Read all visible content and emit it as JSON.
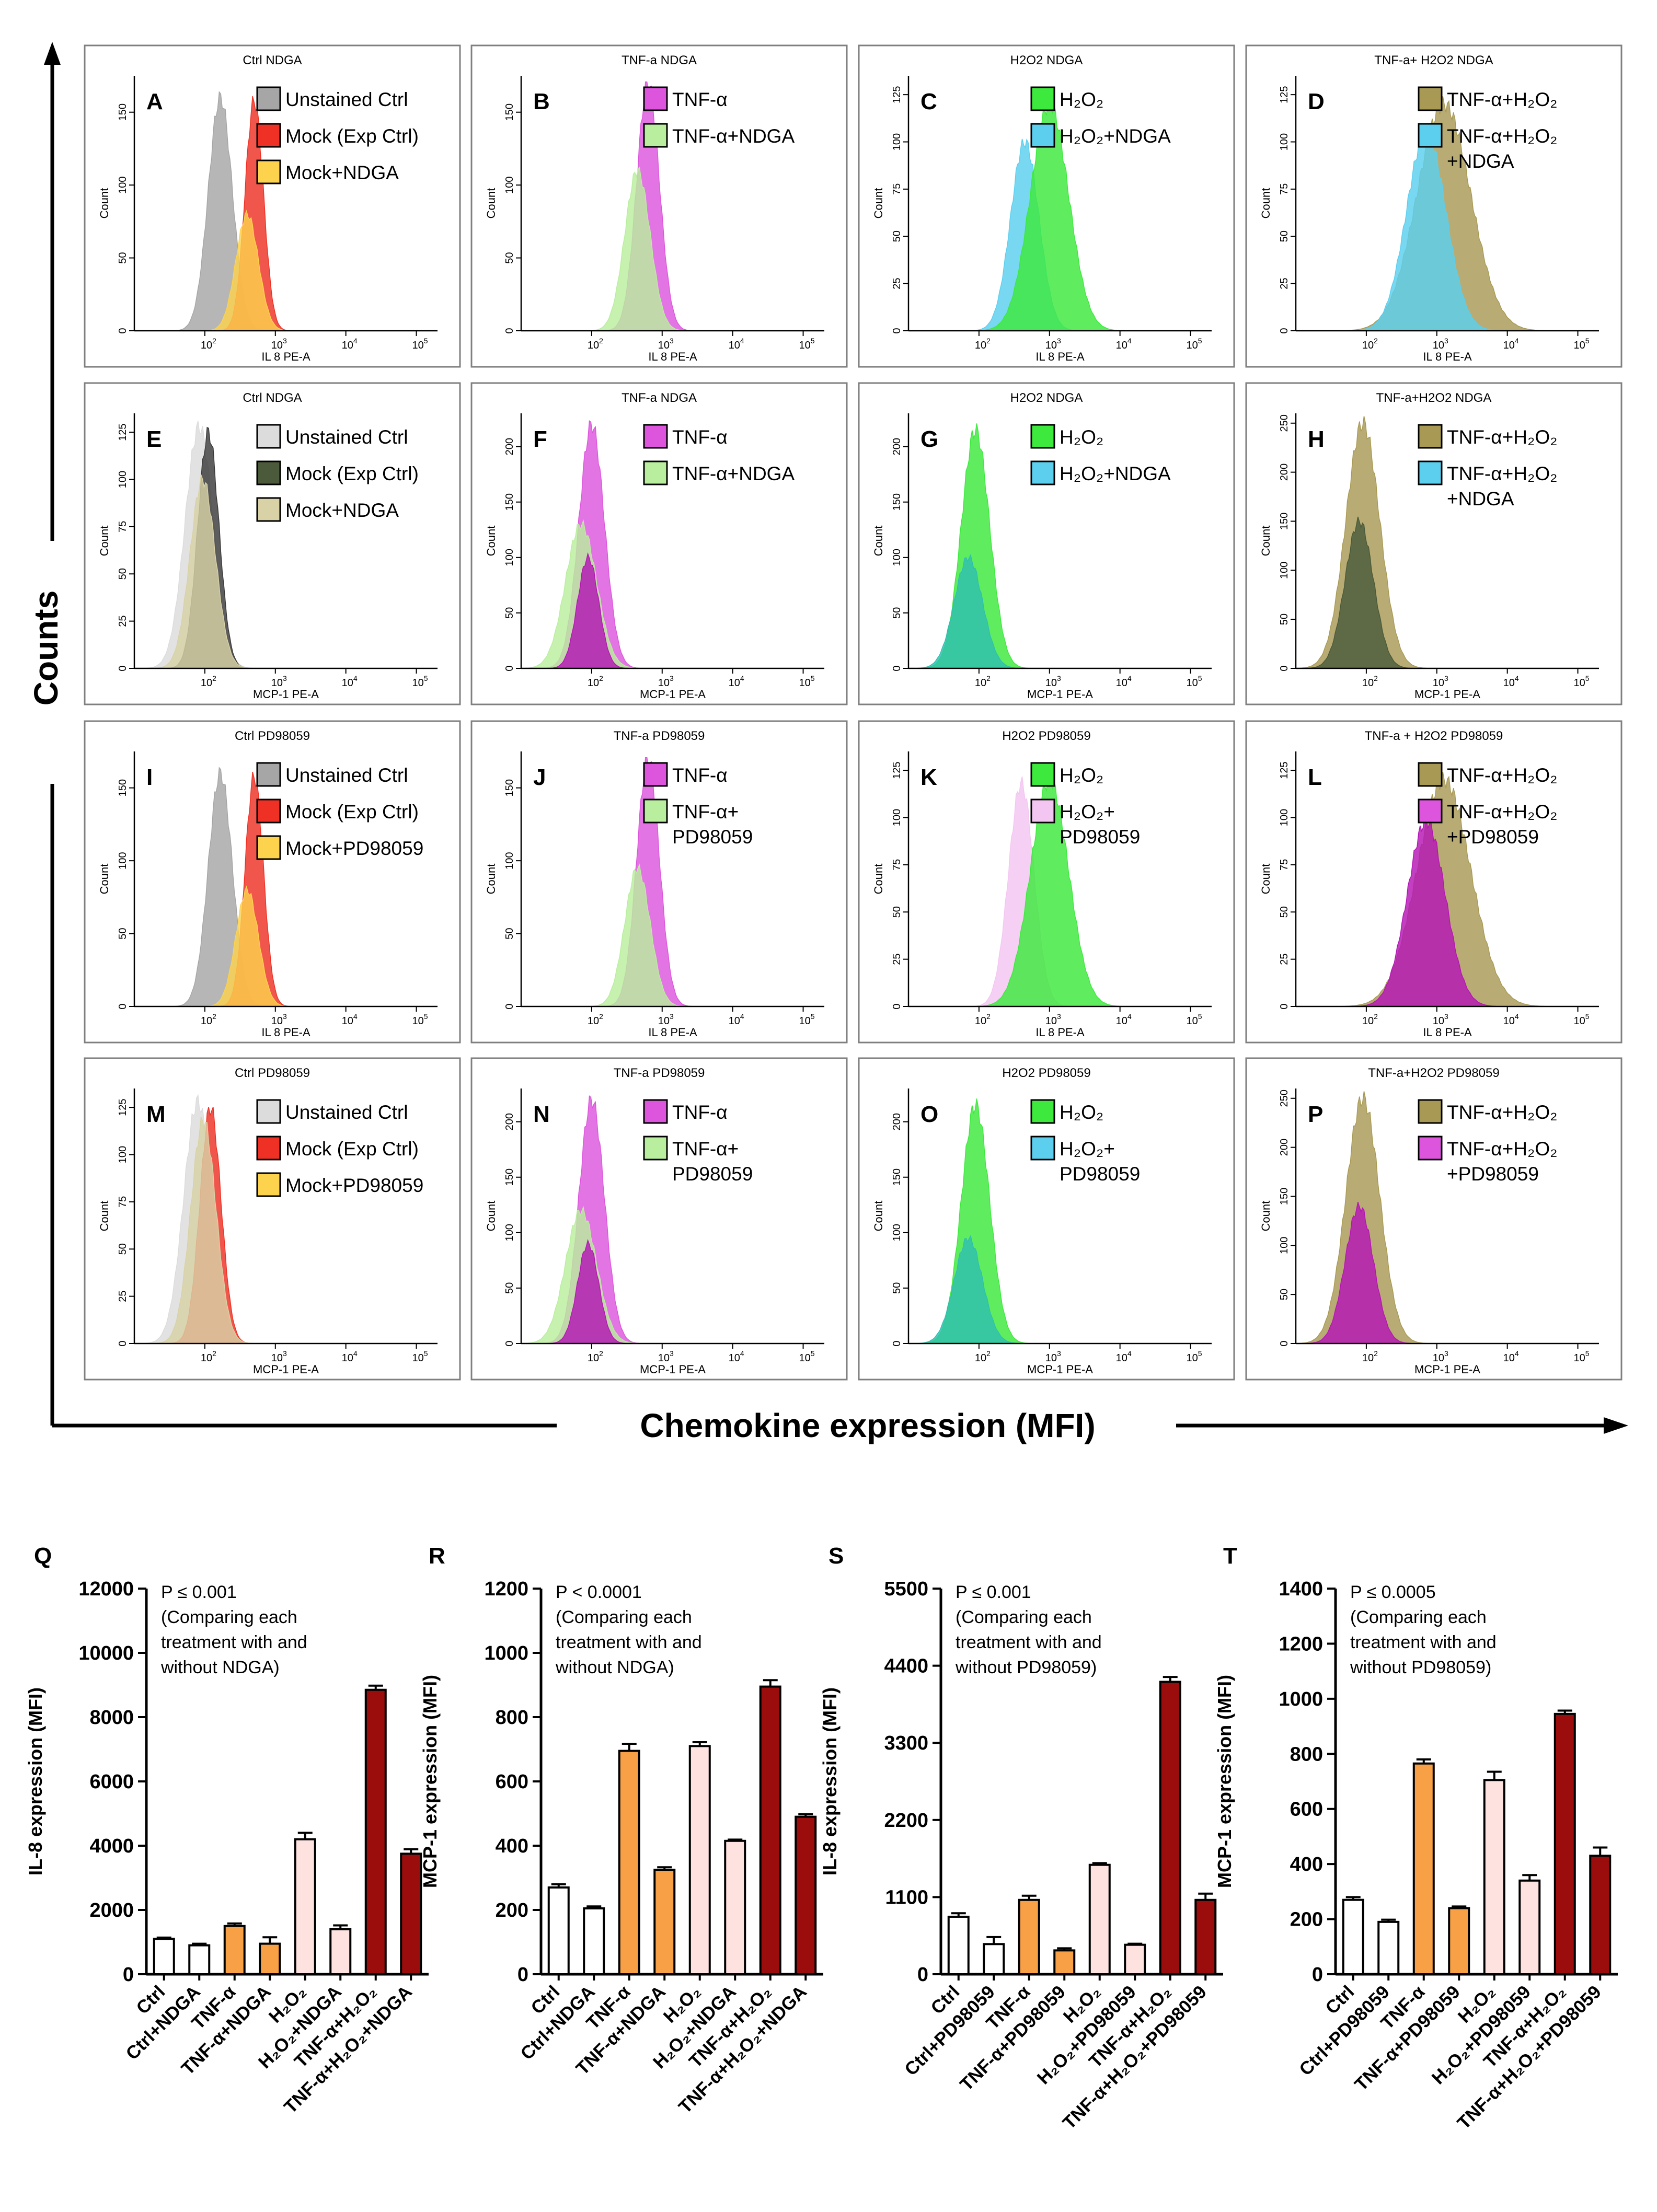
{
  "figure": {
    "y_axis_title": "Counts",
    "x_axis_title": "Chemokine expression (MFI)"
  },
  "colors": {
    "white": "#ffffff",
    "orange": "#f7a046",
    "pink": "#fde2e0",
    "darkred": "#9b0d0d",
    "gray": "#a6a6a6",
    "red": "#ee3124",
    "yellow": "#fdd24d",
    "magenta": "#dd55dd",
    "lightgreen": "#b9ee9e",
    "green": "#3ce93c",
    "skyblue": "#5ccfee",
    "olive": "#a89a55",
    "lilac": "#f3c6f1",
    "purple": "#b515b5",
    "darkgreen": "#4b5a3a",
    "tan": "#d8d2a6",
    "lightgray": "#dcdcdc",
    "darkgray": "#3a3a3a",
    "teal": "#2fbfb0"
  },
  "chart_data": [
    {
      "id": "A",
      "type": "histogram",
      "title": "Ctrl NDGA",
      "xlabel": "IL 8 PE-A",
      "ylabel": "Count",
      "yticks": [
        "0",
        "50",
        "100",
        "150"
      ],
      "ymax": 175,
      "legend": [
        {
          "label": "Unstained Ctrl",
          "color": "gray"
        },
        {
          "label": "Mock (Exp Ctrl)",
          "color": "red"
        },
        {
          "label": "Mock+NDGA",
          "color": "yellow"
        }
      ],
      "series": [
        {
          "color": "gray",
          "center": 2.22,
          "width": 0.17,
          "peak": 160
        },
        {
          "color": "red",
          "center": 2.7,
          "width": 0.13,
          "peak": 158
        },
        {
          "color": "yellow",
          "center": 2.6,
          "width": 0.16,
          "peak": 80
        }
      ]
    },
    {
      "id": "B",
      "type": "histogram",
      "title": "TNF-a NDGA",
      "xlabel": "IL 8 PE-A",
      "ylabel": "Count",
      "yticks": [
        "0",
        "50",
        "100",
        "150"
      ],
      "ymax": 175,
      "legend": [
        {
          "label": "TNF-α",
          "color": "magenta"
        },
        {
          "label": "TNF-α+NDGA",
          "color": "lightgreen"
        }
      ],
      "series": [
        {
          "color": "magenta",
          "center": 2.8,
          "width": 0.16,
          "peak": 170
        },
        {
          "color": "lightgreen",
          "center": 2.65,
          "width": 0.18,
          "peak": 110
        }
      ]
    },
    {
      "id": "C",
      "type": "histogram",
      "title": "H2O2 NDGA",
      "xlabel": "IL 8 PE-A",
      "ylabel": "Count",
      "yticks": [
        "0",
        "25",
        "50",
        "75",
        "100",
        "125"
      ],
      "ymax": 135,
      "legend": [
        {
          "label": "H₂O₂",
          "color": "green"
        },
        {
          "label": "H₂O₂+NDGA",
          "color": "skyblue"
        }
      ],
      "series": [
        {
          "color": "skyblue",
          "center": 2.65,
          "width": 0.2,
          "peak": 100
        },
        {
          "color": "green",
          "center": 3.0,
          "width": 0.27,
          "peak": 120
        }
      ]
    },
    {
      "id": "D",
      "type": "histogram",
      "title": "TNF-a+ H2O2 NDGA",
      "xlabel": "IL 8 PE-A",
      "ylabel": "Count",
      "yticks": [
        "0",
        "25",
        "50",
        "75",
        "100",
        "125"
      ],
      "ymax": 135,
      "legend": [
        {
          "label": "TNF-α+H₂O₂",
          "color": "olive"
        },
        {
          "label": "TNF-α+H₂O₂",
          "color": "skyblue",
          "extra": "+NDGA"
        }
      ],
      "series": [
        {
          "color": "olive",
          "center": 3.1,
          "width": 0.38,
          "peak": 120
        },
        {
          "color": "skyblue",
          "center": 2.85,
          "width": 0.28,
          "peak": 105
        }
      ]
    },
    {
      "id": "E",
      "type": "histogram",
      "title": "Ctrl NDGA",
      "xlabel": "MCP-1 PE-A",
      "ylabel": "Count",
      "yticks": [
        "0",
        "25",
        "50",
        "75",
        "100",
        "125"
      ],
      "ymax": 135,
      "legend": [
        {
          "label": "Unstained Ctrl",
          "color": "lightgray"
        },
        {
          "label": "Mock (Exp Ctrl)",
          "color": "darkgreen"
        },
        {
          "label": "Mock+NDGA",
          "color": "tan"
        }
      ],
      "series": [
        {
          "color": "lightgray",
          "center": 1.92,
          "width": 0.2,
          "peak": 128
        },
        {
          "color": "darkgray",
          "center": 2.05,
          "width": 0.15,
          "peak": 125
        },
        {
          "color": "tan",
          "center": 1.97,
          "width": 0.18,
          "peak": 100
        }
      ]
    },
    {
      "id": "F",
      "type": "histogram",
      "title": "TNF-a NDGA",
      "xlabel": "MCP-1 PE-A",
      "ylabel": "Count",
      "yticks": [
        "0",
        "50",
        "100",
        "150",
        "200"
      ],
      "ymax": 230,
      "legend": [
        {
          "label": "TNF-α",
          "color": "magenta"
        },
        {
          "label": "TNF-α+NDGA",
          "color": "lightgreen"
        }
      ],
      "series": [
        {
          "color": "magenta",
          "center": 2.0,
          "width": 0.18,
          "peak": 220
        },
        {
          "color": "lightgreen",
          "center": 1.85,
          "width": 0.22,
          "peak": 130
        },
        {
          "color": "purple",
          "center": 1.95,
          "width": 0.15,
          "peak": 100
        }
      ]
    },
    {
      "id": "G",
      "type": "histogram",
      "title": "H2O2 NDGA",
      "xlabel": "MCP-1 PE-A",
      "ylabel": "Count",
      "yticks": [
        "0",
        "50",
        "100",
        "150",
        "200"
      ],
      "ymax": 230,
      "legend": [
        {
          "label": "H₂O₂",
          "color": "green"
        },
        {
          "label": "H₂O₂+NDGA",
          "color": "skyblue"
        }
      ],
      "series": [
        {
          "color": "green",
          "center": 1.95,
          "width": 0.2,
          "peak": 215
        },
        {
          "color": "teal",
          "center": 1.85,
          "width": 0.2,
          "peak": 100
        }
      ]
    },
    {
      "id": "H",
      "type": "histogram",
      "title": "TNF-a+H2O2 NDGA",
      "xlabel": "MCP-1 PE-A",
      "ylabel": "Count",
      "yticks": [
        "0",
        "50",
        "100",
        "150",
        "200",
        "250"
      ],
      "ymax": 260,
      "legend": [
        {
          "label": "TNF-α+H₂O₂",
          "color": "olive"
        },
        {
          "label": "TNF-α+H₂O₂",
          "color": "skyblue",
          "extra": "+NDGA"
        }
      ],
      "series": [
        {
          "color": "olive",
          "center": 1.95,
          "width": 0.24,
          "peak": 250
        },
        {
          "color": "darkgreen",
          "center": 1.9,
          "width": 0.2,
          "peak": 150
        }
      ]
    },
    {
      "id": "I",
      "type": "histogram",
      "title": "Ctrl PD98059",
      "xlabel": "IL 8 PE-A",
      "ylabel": "Count",
      "yticks": [
        "0",
        "50",
        "100",
        "150"
      ],
      "ymax": 175,
      "legend": [
        {
          "label": "Unstained Ctrl",
          "color": "gray"
        },
        {
          "label": "Mock (Exp Ctrl)",
          "color": "red"
        },
        {
          "label": "Mock+PD98059",
          "color": "yellow"
        }
      ],
      "series": [
        {
          "color": "gray",
          "center": 2.22,
          "width": 0.17,
          "peak": 160
        },
        {
          "color": "red",
          "center": 2.7,
          "width": 0.13,
          "peak": 158
        },
        {
          "color": "yellow",
          "center": 2.6,
          "width": 0.16,
          "peak": 80
        }
      ]
    },
    {
      "id": "J",
      "type": "histogram",
      "title": "TNF-a PD98059",
      "xlabel": "IL 8 PE-A",
      "ylabel": "Count",
      "yticks": [
        "0",
        "50",
        "100",
        "150"
      ],
      "ymax": 175,
      "legend": [
        {
          "label": "TNF-α",
          "color": "magenta"
        },
        {
          "label": "TNF-α+",
          "color": "lightgreen",
          "extra": "PD98059"
        }
      ],
      "series": [
        {
          "color": "magenta",
          "center": 2.8,
          "width": 0.16,
          "peak": 170
        },
        {
          "color": "lightgreen",
          "center": 2.65,
          "width": 0.18,
          "peak": 95
        }
      ]
    },
    {
      "id": "K",
      "type": "histogram",
      "title": "H2O2 PD98059",
      "xlabel": "IL 8 PE-A",
      "ylabel": "Count",
      "yticks": [
        "0",
        "25",
        "50",
        "75",
        "100",
        "125"
      ],
      "ymax": 135,
      "legend": [
        {
          "label": "H₂O₂",
          "color": "green"
        },
        {
          "label": "H₂O₂+",
          "color": "lilac",
          "extra": "PD98059"
        }
      ],
      "series": [
        {
          "color": "lilac",
          "center": 2.6,
          "width": 0.18,
          "peak": 118
        },
        {
          "color": "green",
          "center": 3.0,
          "width": 0.27,
          "peak": 120
        }
      ]
    },
    {
      "id": "L",
      "type": "histogram",
      "title": "TNF-a + H2O2 PD98059",
      "xlabel": "IL 8 PE-A",
      "ylabel": "Count",
      "yticks": [
        "0",
        "25",
        "50",
        "75",
        "100",
        "125"
      ],
      "ymax": 135,
      "legend": [
        {
          "label": "TNF-α+H₂O₂",
          "color": "olive"
        },
        {
          "label": "TNF-α+H₂O₂",
          "color": "magenta",
          "extra": "+PD98059"
        }
      ],
      "series": [
        {
          "color": "olive",
          "center": 3.1,
          "width": 0.38,
          "peak": 120
        },
        {
          "color": "purple",
          "center": 2.85,
          "width": 0.27,
          "peak": 98
        }
      ]
    },
    {
      "id": "M",
      "type": "histogram",
      "title": "Ctrl PD98059",
      "xlabel": "MCP-1 PE-A",
      "ylabel": "Count",
      "yticks": [
        "0",
        "25",
        "50",
        "75",
        "100",
        "125"
      ],
      "ymax": 135,
      "legend": [
        {
          "label": "Unstained Ctrl",
          "color": "lightgray"
        },
        {
          "label": "Mock (Exp Ctrl)",
          "color": "red"
        },
        {
          "label": "Mock+PD98059",
          "color": "yellow"
        }
      ],
      "series": [
        {
          "color": "lightgray",
          "center": 1.9,
          "width": 0.2,
          "peak": 128
        },
        {
          "color": "red",
          "center": 2.08,
          "width": 0.15,
          "peak": 125
        },
        {
          "color": "tan",
          "center": 1.98,
          "width": 0.18,
          "peak": 118
        }
      ]
    },
    {
      "id": "N",
      "type": "histogram",
      "title": "TNF-a PD98059",
      "xlabel": "MCP-1 PE-A",
      "ylabel": "Count",
      "yticks": [
        "0",
        "50",
        "100",
        "150",
        "200"
      ],
      "ymax": 230,
      "legend": [
        {
          "label": "TNF-α",
          "color": "magenta"
        },
        {
          "label": "TNF-α+",
          "color": "lightgreen",
          "extra": "PD98059"
        }
      ],
      "series": [
        {
          "color": "magenta",
          "center": 2.0,
          "width": 0.18,
          "peak": 220
        },
        {
          "color": "lightgreen",
          "center": 1.85,
          "width": 0.22,
          "peak": 120
        },
        {
          "color": "purple",
          "center": 1.95,
          "width": 0.15,
          "peak": 90
        }
      ]
    },
    {
      "id": "O",
      "type": "histogram",
      "title": "H2O2 PD98059",
      "xlabel": "MCP-1 PE-A",
      "ylabel": "Count",
      "yticks": [
        "0",
        "50",
        "100",
        "150",
        "200"
      ],
      "ymax": 230,
      "legend": [
        {
          "label": "H₂O₂",
          "color": "green"
        },
        {
          "label": "H₂O₂+",
          "color": "skyblue",
          "extra": "PD98059"
        }
      ],
      "series": [
        {
          "color": "green",
          "center": 1.95,
          "width": 0.2,
          "peak": 215
        },
        {
          "color": "teal",
          "center": 1.85,
          "width": 0.2,
          "peak": 95
        }
      ]
    },
    {
      "id": "P",
      "type": "histogram",
      "title": "TNF-a+H2O2 PD98059",
      "xlabel": "MCP-1 PE-A",
      "ylabel": "Count",
      "yticks": [
        "0",
        "50",
        "100",
        "150",
        "200",
        "250"
      ],
      "ymax": 260,
      "legend": [
        {
          "label": "TNF-α+H₂O₂",
          "color": "olive"
        },
        {
          "label": "TNF-α+H₂O₂",
          "color": "magenta",
          "extra": "+PD98059"
        }
      ],
      "series": [
        {
          "color": "olive",
          "center": 1.95,
          "width": 0.24,
          "peak": 250
        },
        {
          "color": "purple",
          "center": 1.9,
          "width": 0.2,
          "peak": 140
        }
      ]
    },
    {
      "id": "Q",
      "type": "bar",
      "ylabel": "IL-8 expression (MFI)",
      "ylim": [
        0,
        12000
      ],
      "yticks": [
        "0",
        "2000",
        "4000",
        "6000",
        "8000",
        "10000",
        "12000"
      ],
      "annotation": [
        "P ≤ 0.001",
        "(Comparing each",
        "treatment with and",
        "without NDGA)"
      ],
      "categories": [
        "Ctrl",
        "Ctrl+NDGA",
        "TNF-α",
        "TNF-α+NDGA",
        "H₂O₂",
        "H₂O₂+NDGA",
        "TNF-α+H₂O₂",
        "TNF-α+H₂O₂+NDGA"
      ],
      "values": [
        1100,
        900,
        1500,
        950,
        4200,
        1400,
        8850,
        3750
      ],
      "errors": [
        40,
        50,
        80,
        200,
        200,
        120,
        130,
        140
      ],
      "colors": [
        "white",
        "white",
        "orange",
        "orange",
        "pink",
        "pink",
        "darkred",
        "darkred"
      ]
    },
    {
      "id": "R",
      "type": "bar",
      "ylabel": "MCP-1 expression (MFI)",
      "ylim": [
        0,
        1200
      ],
      "yticks": [
        "0",
        "200",
        "400",
        "600",
        "800",
        "1000",
        "1200"
      ],
      "annotation": [
        "P < 0.0001",
        "(Comparing each",
        "treatment with and",
        "without NDGA)"
      ],
      "categories": [
        "Ctrl",
        "Ctrl+NDGA",
        "TNF-α",
        "TNF-α+NDGA",
        "H₂O₂",
        "H₂O₂+NDGA",
        "TNF-α+H₂O₂",
        "TNF-α+H₂O₂+NDGA"
      ],
      "values": [
        270,
        205,
        695,
        325,
        710,
        415,
        895,
        490
      ],
      "errors": [
        10,
        6,
        22,
        8,
        12,
        4,
        20,
        8
      ],
      "colors": [
        "white",
        "white",
        "orange",
        "orange",
        "pink",
        "pink",
        "darkred",
        "darkred"
      ]
    },
    {
      "id": "S",
      "type": "bar",
      "ylabel": "IL-8 expression (MFI)",
      "ylim": [
        0,
        5500
      ],
      "yticks": [
        "0",
        "1100",
        "2200",
        "3300",
        "4400",
        "5500"
      ],
      "annotation": [
        "P ≤ 0.001",
        "(Comparing each",
        "treatment with and",
        "without PD98059)"
      ],
      "categories": [
        "Ctrl",
        "Ctrl+PD98059",
        "TNF-α",
        "TNF-α+PD98059",
        "H₂O₂",
        "H₂O₂+PD98059",
        "TNF-α+H₂O₂",
        "TNF-α+H₂O₂+PD98059"
      ],
      "values": [
        820,
        430,
        1060,
        340,
        1560,
        420,
        4170,
        1060
      ],
      "errors": [
        50,
        100,
        60,
        30,
        25,
        15,
        70,
        90
      ],
      "colors": [
        "white",
        "white",
        "orange",
        "orange",
        "pink",
        "pink",
        "darkred",
        "darkred"
      ]
    },
    {
      "id": "T",
      "type": "bar",
      "ylabel": "MCP-1 expression (MFI)",
      "ylim": [
        0,
        1400
      ],
      "yticks": [
        "0",
        "200",
        "400",
        "600",
        "800",
        "1000",
        "1200",
        "1400"
      ],
      "annotation": [
        "P ≤ 0.0005",
        "(Comparing each",
        "treatment with and",
        "without PD98059)"
      ],
      "categories": [
        "Ctrl",
        "Ctrl+PD98059",
        "TNF-α",
        "TNF-α+PD98059",
        "H₂O₂",
        "H₂O₂+PD98059",
        "TNF-α+H₂O₂",
        "TNF-α+H₂O₂+PD98059"
      ],
      "values": [
        270,
        190,
        765,
        240,
        705,
        340,
        945,
        430
      ],
      "errors": [
        10,
        8,
        15,
        6,
        30,
        20,
        12,
        30
      ],
      "colors": [
        "white",
        "white",
        "orange",
        "orange",
        "pink",
        "pink",
        "darkred",
        "darkred"
      ]
    }
  ]
}
